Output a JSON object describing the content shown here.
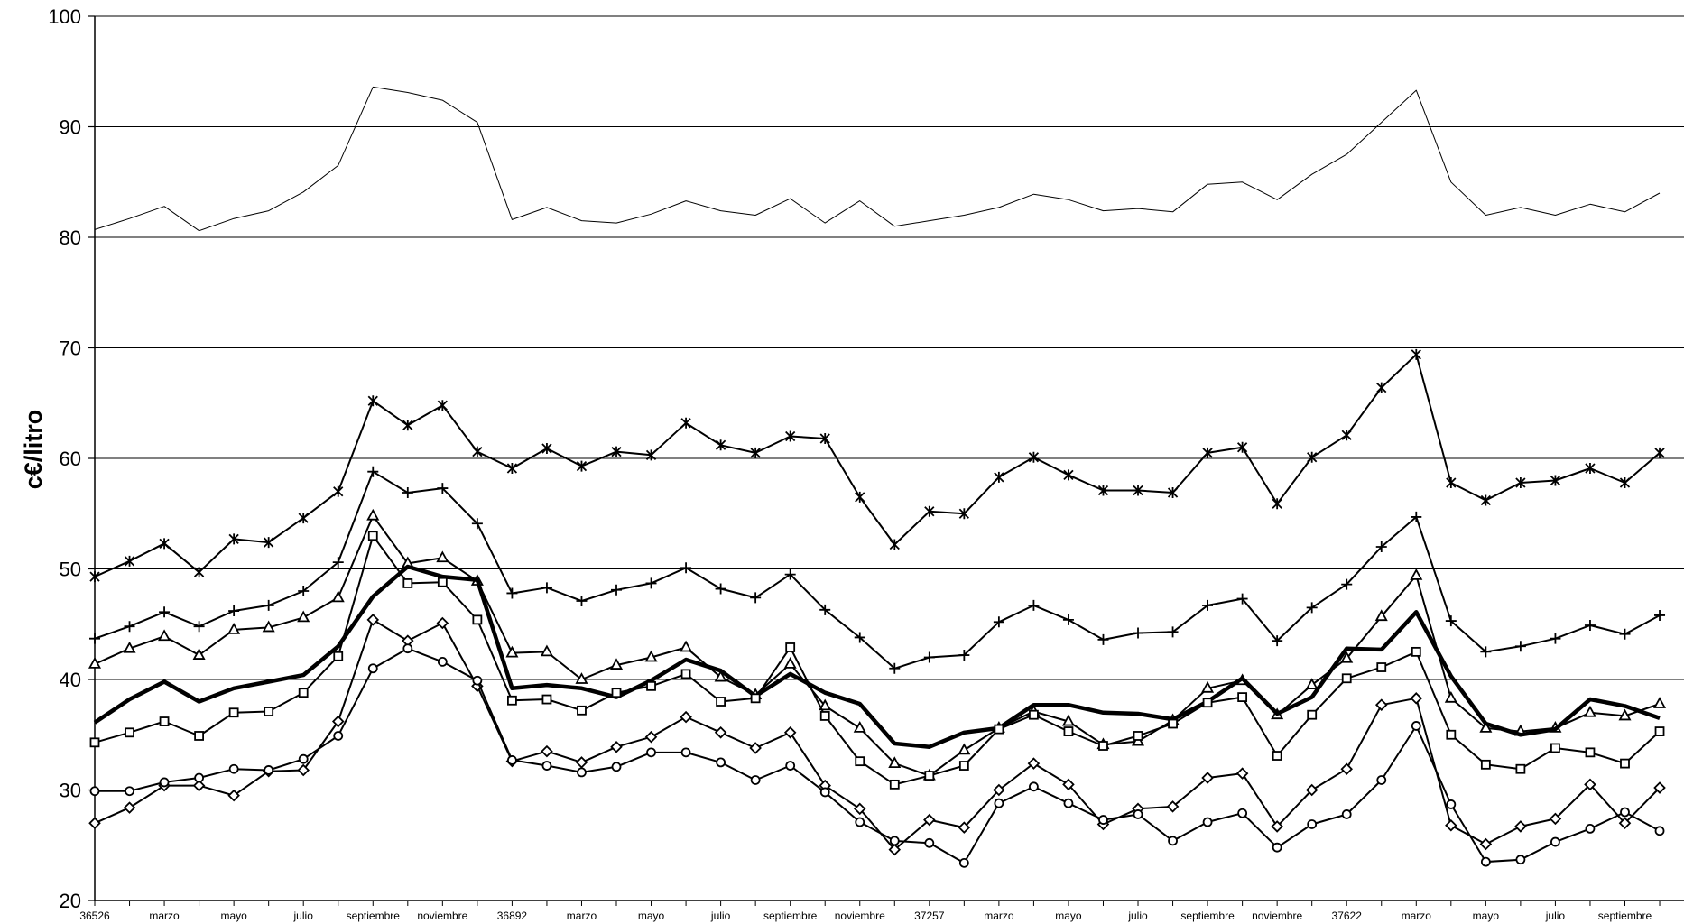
{
  "chart_data": {
    "type": "line",
    "title": "",
    "xlabel": "",
    "ylabel": "c€/litro",
    "ylim": [
      20,
      100
    ],
    "yticks": [
      20,
      30,
      40,
      50,
      60,
      70,
      80,
      90,
      100
    ],
    "grid": "horizontal",
    "legend": "none",
    "x_tick_labels": [
      "36526",
      "marzo",
      "mayo",
      "julio",
      "septiembre",
      "noviembre",
      "36892",
      "marzo",
      "mayo",
      "julio",
      "septiembre",
      "noviembre",
      "37257",
      "marzo",
      "mayo",
      "julio",
      "septiembre",
      "noviembre",
      "37622",
      "marzo",
      "mayo",
      "julio",
      "septiembre"
    ],
    "series": [
      {
        "values": [
          80.7,
          81.7,
          82.8,
          80.6,
          81.7,
          82.4,
          84.1,
          86.5,
          93.6,
          93.1,
          92.4,
          90.4,
          81.6,
          82.7,
          81.5,
          81.3,
          82.1,
          83.3,
          82.4,
          82.0,
          83.5,
          81.3,
          83.3,
          81.0,
          81.5,
          82.0,
          82.7,
          83.9,
          83.4,
          82.4,
          82.6,
          82.3,
          84.8,
          85.0,
          83.4,
          85.7,
          87.5,
          90.4,
          93.3,
          85.0,
          82.0,
          82.7,
          82.0,
          83.0,
          82.3,
          84.0
        ]
      },
      {
        "values": [
          49.3,
          50.7,
          52.3,
          49.7,
          52.7,
          52.4,
          54.6,
          57.0,
          65.2,
          63.0,
          64.8,
          60.6,
          59.1,
          60.9,
          59.3,
          60.6,
          60.3,
          63.2,
          61.2,
          60.5,
          62.0,
          61.8,
          56.5,
          52.2,
          55.2,
          55.0,
          58.3,
          60.1,
          58.5,
          57.1,
          57.1,
          56.9,
          60.5,
          61.0,
          55.9,
          60.1,
          62.1,
          66.4,
          69.4,
          57.8,
          56.2,
          57.8,
          58.0,
          59.1,
          57.8,
          60.5
        ]
      },
      {
        "values": [
          43.7,
          44.8,
          46.1,
          44.8,
          46.2,
          46.7,
          48.0,
          50.6,
          58.8,
          56.9,
          57.3,
          54.1,
          47.8,
          48.3,
          47.1,
          48.1,
          48.7,
          50.1,
          48.2,
          47.4,
          49.5,
          46.3,
          43.8,
          41.0,
          42.0,
          42.2,
          45.2,
          46.7,
          45.4,
          43.6,
          44.2,
          44.3,
          46.7,
          47.3,
          43.5,
          46.5,
          48.6,
          52.0,
          54.7,
          45.3,
          42.5,
          43.0,
          43.7,
          44.9,
          44.1,
          45.8
        ]
      },
      {
        "values": [
          41.4,
          42.8,
          43.9,
          42.2,
          44.5,
          44.7,
          45.6,
          47.4,
          54.8,
          50.5,
          51.0,
          48.9,
          42.4,
          42.5,
          40.0,
          41.3,
          42.0,
          42.9,
          40.2,
          38.6,
          41.4,
          37.6,
          35.6,
          32.4,
          31.3,
          33.6,
          35.6,
          37.1,
          36.2,
          34.1,
          34.4,
          36.3,
          39.2,
          39.9,
          36.8,
          39.5,
          41.9,
          45.7,
          49.4,
          38.3,
          35.6,
          35.3,
          35.6,
          37.0,
          36.7,
          37.8
        ]
      },
      {
        "values": [
          36.1,
          38.2,
          39.8,
          38.0,
          39.2,
          39.8,
          40.4,
          43.0,
          47.5,
          50.2,
          49.3,
          49.0,
          39.2,
          39.5,
          39.2,
          38.4,
          39.9,
          41.8,
          40.8,
          38.5,
          40.5,
          38.8,
          37.8,
          34.2,
          33.9,
          35.2,
          35.6,
          37.7,
          37.7,
          37.0,
          36.9,
          36.4,
          38.0,
          40.1,
          36.9,
          38.4,
          42.8,
          42.7,
          46.1,
          40.3,
          36.0,
          35.0,
          35.5,
          38.2,
          37.6,
          36.5
        ]
      },
      {
        "values": [
          34.3,
          35.2,
          36.2,
          34.9,
          37.0,
          37.1,
          38.8,
          42.1,
          53.0,
          48.7,
          48.8,
          45.4,
          38.1,
          38.2,
          37.2,
          38.8,
          39.4,
          40.5,
          38.0,
          38.3,
          42.9,
          36.7,
          32.6,
          30.5,
          31.3,
          32.2,
          35.5,
          36.8,
          35.3,
          34.0,
          34.9,
          36.0,
          37.9,
          38.4,
          33.1,
          36.8,
          40.1,
          41.1,
          42.5,
          35.0,
          32.3,
          31.9,
          33.8,
          33.4,
          32.4,
          35.3
        ]
      },
      {
        "values": [
          27.0,
          28.4,
          30.4,
          30.4,
          29.5,
          31.7,
          31.8,
          36.2,
          45.4,
          43.5,
          45.1,
          39.4,
          32.6,
          33.5,
          32.5,
          33.9,
          34.8,
          36.6,
          35.2,
          33.8,
          35.2,
          30.4,
          28.3,
          24.6,
          27.3,
          26.6,
          30.0,
          32.4,
          30.5,
          26.9,
          28.3,
          28.5,
          31.1,
          31.5,
          26.7,
          30.0,
          31.9,
          37.7,
          38.3,
          26.8,
          25.1,
          26.7,
          27.4,
          30.5,
          27.0,
          30.2
        ]
      },
      {
        "values": [
          29.9,
          29.9,
          30.7,
          31.1,
          31.9,
          31.8,
          32.8,
          34.9,
          41.0,
          42.8,
          41.6,
          39.9,
          32.7,
          32.2,
          31.6,
          32.1,
          33.4,
          33.4,
          32.5,
          30.9,
          32.2,
          29.8,
          27.1,
          25.4,
          25.2,
          23.4,
          28.8,
          30.3,
          28.8,
          27.3,
          27.8,
          25.4,
          27.1,
          27.9,
          24.8,
          26.9,
          27.8,
          30.9,
          35.8,
          28.7,
          23.5,
          23.7,
          25.3,
          26.5,
          28.0,
          26.3
        ]
      }
    ]
  }
}
